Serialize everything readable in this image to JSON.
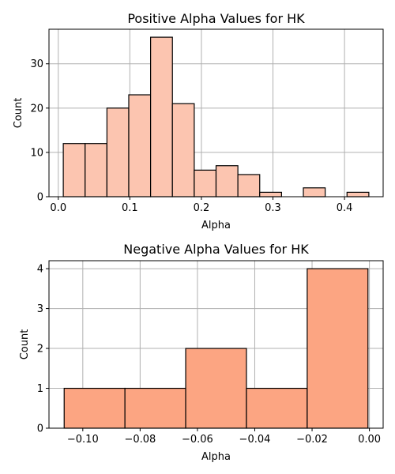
{
  "chart_data": [
    {
      "type": "bar",
      "title": "Positive Alpha Values for HK",
      "xlabel": "Alpha",
      "ylabel": "Count",
      "bin_edges": [
        0.007,
        0.0375,
        0.068,
        0.0985,
        0.129,
        0.1595,
        0.19,
        0.2205,
        0.251,
        0.2815,
        0.312,
        0.3425,
        0.373,
        0.4035,
        0.434
      ],
      "values": [
        12,
        12,
        20,
        23,
        36,
        21,
        6,
        7,
        5,
        1,
        0,
        2,
        0,
        1
      ],
      "xlim": [
        -0.013,
        0.454
      ],
      "ylim": [
        0,
        37.8
      ],
      "xticks": [
        0.0,
        0.1,
        0.2,
        0.3,
        0.4
      ],
      "xtick_labels": [
        "0.0",
        "0.1",
        "0.2",
        "0.3",
        "0.4"
      ],
      "yticks": [
        0,
        10,
        20,
        30
      ],
      "ytick_labels": [
        "0",
        "10",
        "20",
        "30"
      ],
      "bar_color": "#fcc5b0",
      "edge_color": "#000000",
      "grid": true
    },
    {
      "type": "bar",
      "title": "Negative Alpha Values for HK",
      "xlabel": "Alpha",
      "ylabel": "Count",
      "bin_edges": [
        -0.1065,
        -0.0853,
        -0.0641,
        -0.0429,
        -0.0217,
        -0.0005
      ],
      "values": [
        1,
        1,
        2,
        1,
        4
      ],
      "xlim": [
        -0.1118,
        0.0048
      ],
      "ylim": [
        0,
        4.2
      ],
      "xticks": [
        -0.1,
        -0.08,
        -0.06,
        -0.04,
        -0.02,
        0.0
      ],
      "xtick_labels": [
        "−0.10",
        "−0.08",
        "−0.06",
        "−0.04",
        "−0.02",
        "0.00"
      ],
      "yticks": [
        0,
        1,
        2,
        3,
        4
      ],
      "ytick_labels": [
        "0",
        "1",
        "2",
        "3",
        "4"
      ],
      "bar_color": "#fca582",
      "edge_color": "#000000",
      "grid": true
    }
  ]
}
